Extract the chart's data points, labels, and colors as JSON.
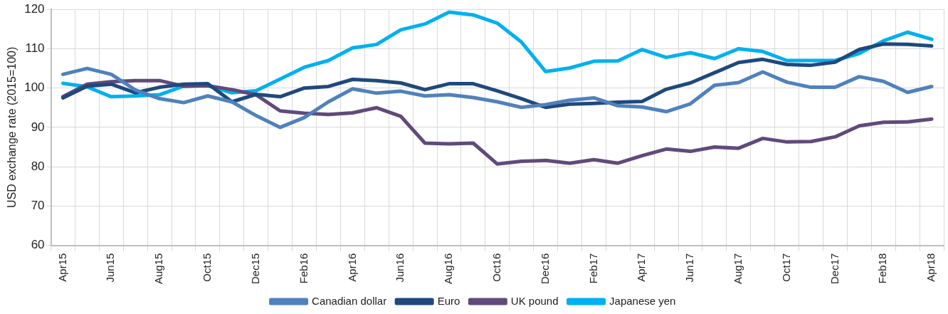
{
  "chart_data": {
    "type": "line",
    "ylabel": "USD exchange rate (2015=100)",
    "categories": [
      "Apr15",
      null,
      "Jun15",
      null,
      "Aug15",
      null,
      "Oct15",
      null,
      "Dec15",
      null,
      "Feb16",
      null,
      "Apr16",
      null,
      "Jun16",
      null,
      "Aug16",
      null,
      "Oct16",
      null,
      "Dec16",
      null,
      "Feb17",
      null,
      "Apr17",
      null,
      "Jun17",
      null,
      "Aug17",
      null,
      "Oct17",
      null,
      "Dec17",
      null,
      "Feb18",
      null,
      "Apr18"
    ],
    "series": [
      {
        "name": "Canadian dollar",
        "color": "#4f81bd",
        "values": [
          103.5,
          105,
          103.5,
          99.5,
          97.3,
          96.3,
          98,
          96.5,
          93,
          90,
          92.5,
          96.5,
          99.8,
          98.7,
          99.2,
          98,
          98.3,
          97.6,
          96.5,
          95.1,
          95.8,
          96.9,
          97.5,
          95.5,
          95.2,
          94,
          96,
          100.7,
          101.4,
          104.1,
          101.5,
          100.2,
          100.2,
          102.9,
          101.7,
          98.9,
          100.4
        ]
      },
      {
        "name": "Euro",
        "color": "#1f497d",
        "values": [
          97.5,
          100.5,
          101,
          98.8,
          100.2,
          101,
          101.1,
          96.5,
          98.4,
          97.8,
          100,
          100.4,
          102.2,
          101.9,
          101.3,
          99.6,
          101.1,
          101.1,
          99.3,
          97.3,
          95.1,
          95.9,
          96.1,
          96.4,
          96.6,
          99.7,
          101.3,
          103.9,
          106.5,
          107.3,
          106,
          105.8,
          106.6,
          109.8,
          111.2,
          111.1,
          110.7
        ]
      },
      {
        "name": "UK pound",
        "color": "#604a7b",
        "values": [
          97.8,
          101,
          101.6,
          101.9,
          101.9,
          100.5,
          100.6,
          99.6,
          98.3,
          94.2,
          93.6,
          93.3,
          93.7,
          95,
          92.8,
          86,
          85.8,
          86,
          80.7,
          81.4,
          81.6,
          80.9,
          81.8,
          80.9,
          82.8,
          84.5,
          83.9,
          85,
          84.7,
          87.2,
          86.3,
          86.4,
          87.6,
          90.4,
          91.3,
          91.4,
          92.1
        ]
      },
      {
        "name": "Japanese yen",
        "color": "#00b0f0",
        "values": [
          101.2,
          100.3,
          97.8,
          98,
          98.3,
          100.5,
          100.6,
          98.8,
          99.3,
          102.3,
          105.3,
          107,
          110.2,
          111.1,
          114.8,
          116.3,
          119.3,
          118.6,
          116.5,
          111.7,
          104.2,
          105.1,
          106.8,
          106.9,
          109.8,
          107.8,
          109,
          107.5,
          110,
          109.3,
          107,
          107,
          107,
          108.8,
          112,
          114.2,
          112.4
        ]
      }
    ],
    "ylim": [
      60,
      120
    ],
    "yticks": [
      60,
      70,
      80,
      90,
      100,
      110,
      120
    ],
    "grid": true,
    "legend": "bottom",
    "marker": "none",
    "line_style": "solid"
  }
}
